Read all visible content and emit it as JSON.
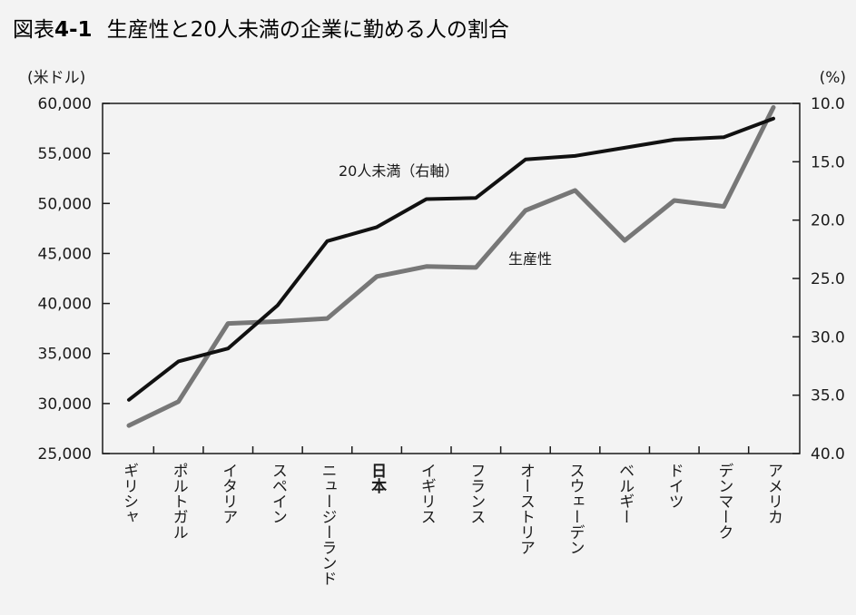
{
  "title": {
    "prefix": "図表",
    "number": "4-1",
    "text": "生産性と20人未満の企業に勤める人の割合"
  },
  "chart_data": {
    "type": "line",
    "categories": [
      "ギリシャ",
      "ポルトガル",
      "イタリア",
      "スペイン",
      "ニュージーランド",
      "日本",
      "イギリス",
      "フランス",
      "オーストリア",
      "スウェーデン",
      "ベルギー",
      "ドイツ",
      "デンマーク",
      "アメリカ"
    ],
    "highlight_category": "日本",
    "left_axis": {
      "unit_label": "(米ドル)",
      "ylim": [
        25000,
        60000
      ],
      "ticks": [
        25000,
        30000,
        35000,
        40000,
        45000,
        50000,
        55000,
        60000
      ],
      "tick_labels": [
        "25,000",
        "30,000",
        "35,000",
        "40,000",
        "45,000",
        "50,000",
        "55,000",
        "60,000"
      ]
    },
    "right_axis": {
      "unit_label": "(%)",
      "ylim": [
        40.0,
        10.0
      ],
      "inverted": true,
      "ticks": [
        10.0,
        15.0,
        20.0,
        25.0,
        30.0,
        35.0,
        40.0
      ],
      "tick_labels": [
        "10.0",
        "15.0",
        "20.0",
        "25.0",
        "30.0",
        "35.0",
        "40.0"
      ]
    },
    "series": [
      {
        "name": "20人未満（右軸）",
        "axis": "right",
        "color": "#111111",
        "values": [
          35.4,
          32.1,
          31.0,
          27.3,
          21.8,
          20.6,
          18.2,
          18.1,
          14.8,
          14.5,
          13.8,
          13.1,
          12.9,
          11.3
        ]
      },
      {
        "name": "生産性",
        "axis": "left",
        "color": "#777777",
        "values": [
          27800,
          30200,
          38000,
          38200,
          38500,
          42700,
          43700,
          43600,
          49300,
          51300,
          46300,
          50300,
          49700,
          59600
        ]
      }
    ],
    "xlabel": "",
    "grid": false
  }
}
